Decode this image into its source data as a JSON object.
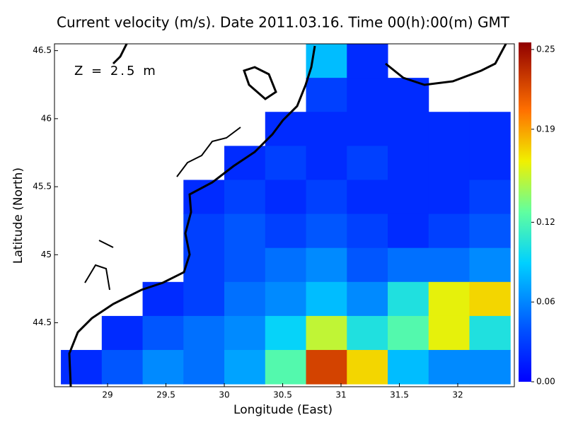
{
  "chart_data": {
    "type": "heatmap",
    "title": "Current velocity (m/s). Date 2011.03.16. Time 00(h):00(m) GMT",
    "annotation": "Z = 2.5 m",
    "x_label": "Longitude (East)",
    "y_label": "Latitude (North)",
    "xlim": [
      28.545,
      32.485
    ],
    "ylim": [
      44.03,
      46.55
    ],
    "xticks": [
      29,
      29.5,
      30,
      30.5,
      31,
      31.5,
      32
    ],
    "yticks": [
      44.5,
      45,
      45.5,
      46,
      46.5
    ],
    "x_edges": [
      28.6,
      28.95,
      29.3,
      29.65,
      30.0,
      30.35,
      30.7,
      31.05,
      31.4,
      31.75,
      32.1,
      32.45
    ],
    "y_edges": [
      46.55,
      46.3,
      46.05,
      45.8,
      45.55,
      45.3,
      45.05,
      44.8,
      44.55,
      44.3,
      44.05
    ],
    "values": [
      [
        null,
        null,
        null,
        null,
        null,
        null,
        0.08,
        0.02,
        null,
        null,
        null
      ],
      [
        null,
        null,
        null,
        null,
        null,
        null,
        0.03,
        0.02,
        0.02,
        null,
        null
      ],
      [
        null,
        null,
        null,
        null,
        null,
        0.02,
        0.02,
        0.02,
        0.02,
        0.02,
        0.02
      ],
      [
        null,
        null,
        null,
        null,
        0.02,
        0.03,
        0.02,
        0.03,
        0.02,
        0.02,
        0.02
      ],
      [
        null,
        null,
        null,
        0.02,
        0.03,
        0.02,
        0.03,
        0.02,
        0.02,
        0.02,
        0.03
      ],
      [
        null,
        null,
        null,
        0.03,
        0.04,
        0.03,
        0.04,
        0.03,
        0.02,
        0.03,
        0.04
      ],
      [
        null,
        null,
        null,
        0.03,
        0.04,
        0.05,
        0.06,
        0.04,
        0.05,
        0.05,
        0.06
      ],
      [
        null,
        null,
        0.02,
        0.03,
        0.05,
        0.06,
        0.08,
        0.06,
        0.1,
        0.16,
        0.17
      ],
      [
        null,
        0.02,
        0.04,
        0.05,
        0.06,
        0.09,
        0.15,
        0.1,
        0.12,
        0.16,
        0.1
      ],
      [
        0.02,
        0.04,
        0.06,
        0.05,
        0.07,
        0.12,
        0.22,
        0.17,
        0.08,
        0.06,
        0.06
      ]
    ],
    "clim": [
      0,
      0.25
    ],
    "cticks": [
      {
        "value": 0,
        "label": "0.00"
      },
      {
        "value": 0.06,
        "label": "0.06"
      },
      {
        "value": 0.12,
        "label": "0.12"
      },
      {
        "value": 0.19,
        "label": "0.19"
      },
      {
        "value": 0.25,
        "label": "0.25"
      }
    ]
  }
}
